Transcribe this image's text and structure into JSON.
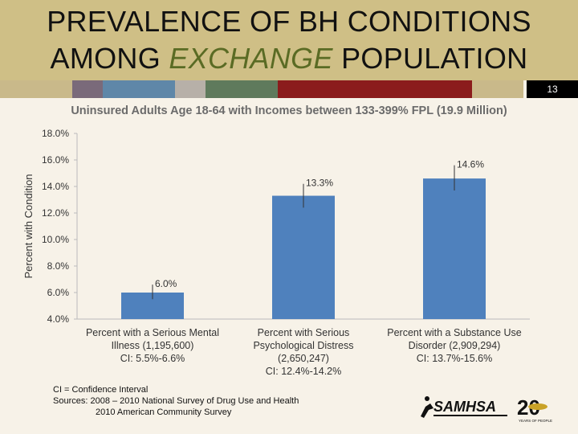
{
  "slide": {
    "title_line1": "PREVALENCE OF BH CONDITIONS",
    "title_line2_a": "AMONG ",
    "title_line2_b": "EXCHANGE",
    "title_line2_c": " POPULATION",
    "page_number": "13"
  },
  "stripe_colors": [
    "#c9b98a",
    "#7a6a7a",
    "#5f87a8",
    "#b7b0a8",
    "#5f7a5c",
    "#8b1c1c",
    "#c9b98a"
  ],
  "chart_data": {
    "type": "bar",
    "title": "Uninsured Adults Age 18-64 with Incomes between 133-399% FPL (19.9 Million)",
    "ylabel": "Percent with Condition",
    "xlabel": "",
    "ylim": [
      4,
      18
    ],
    "yticks": [
      "4.0%",
      "6.0%",
      "8.0%",
      "10.0%",
      "12.0%",
      "14.0%",
      "16.0%",
      "18.0%"
    ],
    "bar_color": "#4f81bd",
    "categories": [
      [
        "Percent with a Serious Mental",
        "Illness (1,195,600)",
        "CI: 5.5%-6.6%"
      ],
      [
        "Percent with Serious",
        "Psychological Distress",
        "(2,650,247)",
        "CI: 12.4%-14.2%"
      ],
      [
        "Percent with a Substance Use",
        "Disorder (2,909,294)",
        "CI: 13.7%-15.6%"
      ]
    ],
    "values": [
      6.0,
      13.3,
      14.6
    ],
    "value_labels": [
      "6.0%",
      "13.3%",
      "14.6%"
    ],
    "ci_low": [
      5.5,
      12.4,
      13.7
    ],
    "ci_high": [
      6.6,
      14.2,
      15.6
    ],
    "grid": false
  },
  "footnote": {
    "line1": "CI = Confidence Interval",
    "line2": "Sources: 2008 – 2010 National Survey of Drug Use and Health",
    "line3": "2010 American Community Survey"
  },
  "logo": {
    "name": "SAMHSA",
    "anniversary": "20",
    "tagline": "YEARS OF PEOPLE"
  }
}
